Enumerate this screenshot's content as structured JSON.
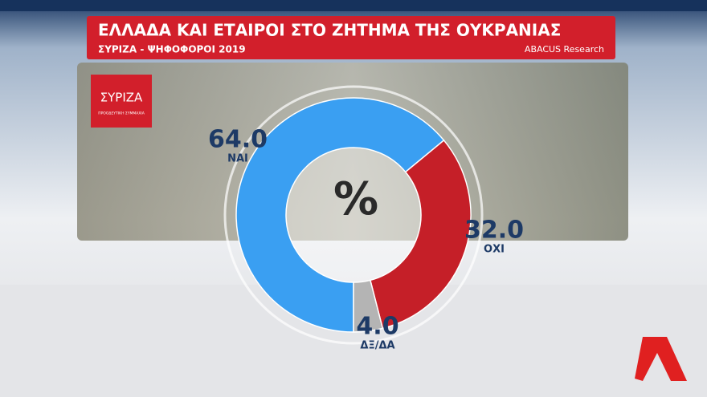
{
  "chart_data": {
    "type": "donut",
    "title": "ΕΛΛΑΔΑ ΚΑΙ ΕΤΑΙΡΟΙ ΣΤΟ ΖΗΤΗΜΑ ΤΗΣ ΟΥΚΡΑΝΙΑΣ",
    "subtitle": "ΣΥΡΙΖΑ - ΨΗΦΟΦΟΡΟΙ 2019",
    "source": "ABACUS Research",
    "center_label": "%",
    "logo": {
      "name": "ΣΥΡΙΖΑ",
      "tagline": "ΠΡΟΟΔΕΥΤΙΚΗ ΣΥΜΜΑΧΙΑ"
    },
    "categories": [
      "ΝΑΙ",
      "ΟΧΙ",
      "ΔΞ/ΔΑ"
    ],
    "values": [
      64.0,
      32.0,
      4.0
    ],
    "value_labels": [
      "64.0",
      "32.0",
      "4.0"
    ],
    "colors": [
      "#3a9ff2",
      "#c51f28",
      "#b4b4b4"
    ]
  }
}
